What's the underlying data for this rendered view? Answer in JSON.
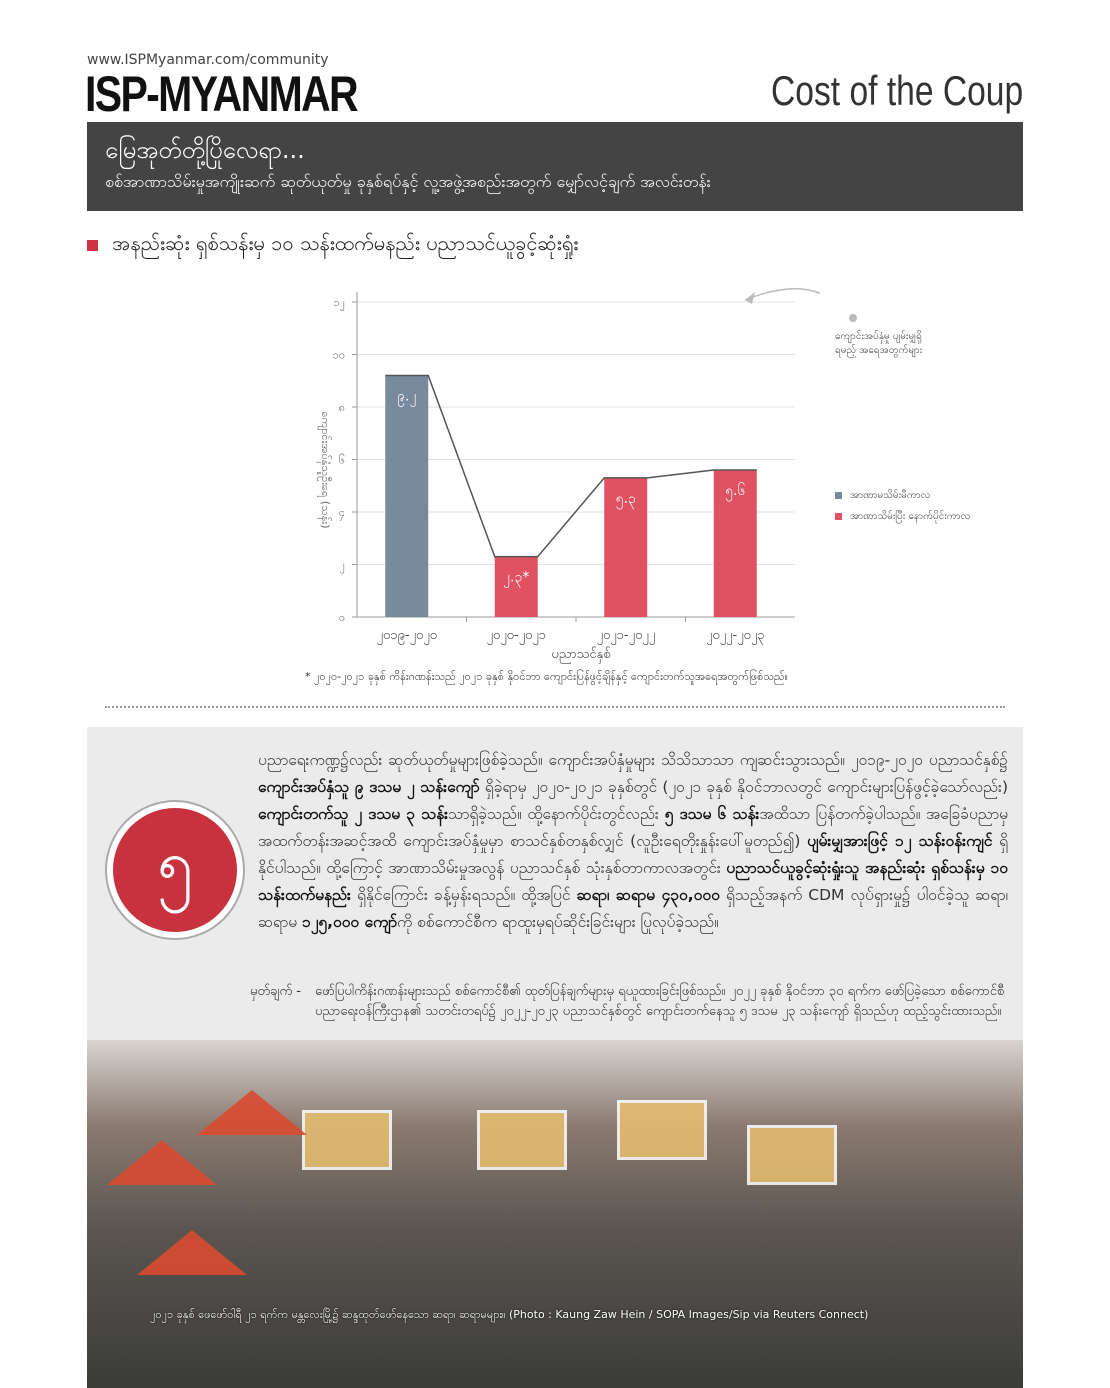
{
  "header": {
    "url": "www.ISPMyanmar.com/community",
    "logo": "ISP-MYANMAR",
    "series_title": "Cost of the Coup"
  },
  "band": {
    "title": "မြေအုတ်တို့ပြိုလေရာ...",
    "subtitle": "စစ်အာဏာသိမ်းမှုအကျိုးဆက် ဆုတ်ယုတ်မှု ခုနှစ်ရပ်နှင့် လူ့အဖွဲ့အစည်းအတွက် မျှော်လင့်ချက် အလင်းတန်း"
  },
  "section_title": "အနည်းဆုံး ရှစ်သန်းမှ ၁၀ သန်းထက်မနည်း ပညာသင်ယူခွင့်ဆုံးရှုံး",
  "chart_data": {
    "type": "bar",
    "categories": [
      "၂၀၁၉-၂၀၂၀",
      "၂၀၂၀-၂၀၂၁",
      "၂၀၂၁-၂၀၂၂",
      "၂၀၂၂-၂၀၂၃"
    ],
    "values": [
      9.2,
      2.3,
      5.3,
      5.6
    ],
    "data_labels": [
      "၉.၂",
      "၂.၃*",
      "၅.၃",
      "၅.၆"
    ],
    "periods": [
      "before",
      "after",
      "after",
      "after"
    ],
    "ylim": [
      0,
      12
    ],
    "yticks": [
      0,
      2,
      4,
      6,
      8,
      10,
      12
    ],
    "ytick_labels": [
      "၀",
      "၂",
      "၄",
      "၆",
      "၈",
      "၁၀",
      "၁၂"
    ],
    "xlabel": "ပညာသင်နှစ်",
    "ylabel": "ကျောင်းအပ်နှံသူဦးရေ (သန်း)",
    "grid": true,
    "connecting_line": true,
    "legend": [
      {
        "name": "အာဏာမသိမ်းမီကာလ",
        "color": "#7a8a9e"
      },
      {
        "name": "အာဏာသိမ်းပြီး နောက်ပိုင်းကာလ",
        "color": "#e05262"
      }
    ],
    "legend_position": "right",
    "annotation": "ကျောင်းအပ်နှံမှု ပျမ်းမျှရှိရမည့် အရေအတွက်များ",
    "footnote": "* ၂၀၂၀-၂၀၂၁ ခုနှစ် ကိန်းဂဏန်းသည် ၂၀၂၁ ခုနှစ် နိုဝင်ဘာ ကျောင်းပြန်ဖွင့်ချိန်နှင့် ကျောင်းတက်သူအရေအတွက်ဖြစ်သည်။"
  },
  "circle_number": "၅",
  "body": {
    "p1": "ပညာရေးကဏ္ဍ၌လည်း ဆုတ်ယုတ်မှုများဖြစ်ခဲ့သည်။ ကျောင်းအပ်နှံမှုများ သိသိသာသာ ကျဆင်းသွားသည်။ ၂၀၁၉-၂၀၂၀ ပညာသင်နှစ်၌ ",
    "b1": "ကျောင်းအပ်နှံသူ ၉ ဒသမ ၂ သန်းကျော်",
    "p2": " ရှိခဲ့ရာမှ ၂၀၂၀-၂၀၂၁ ခုနှစ်တွင် (၂၀၂၁ ခုနှစ် နိုဝင်ဘာလတွင် ကျောင်းများပြန်ဖွင့်ခဲ့သော်လည်း) ",
    "b2": "ကျောင်းတက်သူ ၂ ဒသမ ၃ သန်း",
    "p3": "သာရှိခဲ့သည်။ ထို့နောက်ပိုင်းတွင်လည်း ",
    "b3": "၅ ဒသမ ၆ သန်း",
    "p4": "အထိသာ ပြန်တက်ခဲ့ပါသည်။ အခြေခံပညာမှ အထက်တန်းအဆင့်အထိ ကျောင်းအပ်နှံမှုမှာ စာသင်နှစ်တနှစ်လျှင် (လူဦးရေတိုးနှုန်းပေါ်မူတည်၍) ",
    "b4": "ပျမ်းမျှအားဖြင့် ၁၂ သန်းဝန်းကျင်",
    "p5": " ရှိနိုင်ပါသည်။ ထို့ကြောင့် အာဏာသိမ်းမှုအလွန် ပညာသင်နှစ် သုံးနှစ်တာကာလအတွင်း ",
    "b5": "ပညာသင်ယူခွင့်ဆုံးရှုံးသူ အနည်းဆုံး ရှစ်သန်းမှ ၁၀ သန်းထက်မနည်း",
    "p6": " ရှိနိုင်ကြောင်း ခန့်မှန်းရသည်။ ထို့အပြင် ",
    "b6": "ဆရာ၊ ဆရာမ ၄၃၀,၀၀၀",
    "p7": " ရှိသည့်အနက် CDM လုပ်ရှားမှု၌ ပါဝင်ခဲ့သူ ဆရာ၊ ဆရာမ ",
    "b7": "၁၂၅,၀၀၀ ကျော်",
    "p8": "ကို စစ်ကောင်စီက ရာထူးမှရပ်ဆိုင်းခြင်းများ ပြုလုပ်ခဲ့သည်။"
  },
  "note": {
    "label": "မှတ်ချက် -",
    "text": "ဖော်ပြပါကိန်းဂဏန်းများသည် စစ်ကောင်စီ၏ ထုတ်ပြန်ချက်များမှ ရယူထားခြင်းဖြစ်သည်။ ၂၀၂၂ ခုနှစ် နိုဝင်ဘာ ၃၀ ရက်က ဖော်ပြခဲ့သော စစ်ကောင်စီ ပညာရေးဝန်ကြီးဌာန၏ သတင်းတရပ်၌ ၂၀၂၂-၂၀၂၃ ပညာသင်နှစ်တွင် ကျောင်းတက်နေသူ ၅ ဒသမ ၂၃ သန်းကျော် ရှိသည်ဟု ထည့်သွင်းထားသည်။"
  },
  "photo_caption": "၂၀၂၁ ခုနှစ် ဖေဖော်ဝါရီ ၂၁ ရက်က မန္တလေးမြို့၌ ဆန္ဒထုတ်ဖော်နေသော ဆရာ၊ ဆရာမများ။ (Photo : Kaung Zaw Hein / SOPA Images/Sip via Reuters Connect)"
}
